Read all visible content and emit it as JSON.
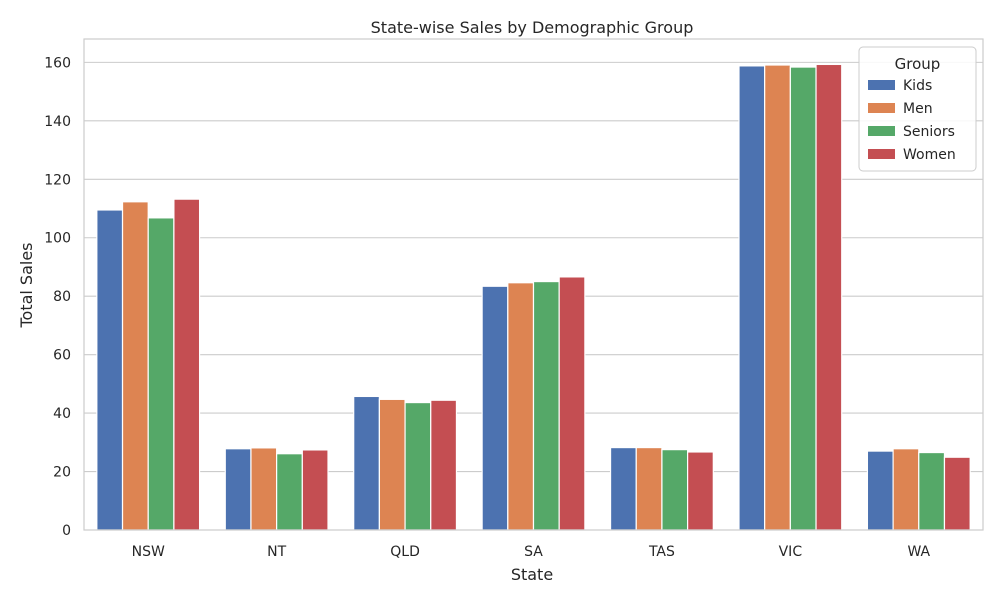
{
  "chart_data": {
    "type": "bar",
    "title": "State-wise Sales by Demographic Group",
    "xlabel": "State",
    "ylabel": "Total Sales",
    "categories": [
      "NSW",
      "NT",
      "QLD",
      "SA",
      "TAS",
      "VIC",
      "WA"
    ],
    "ylim": [
      0,
      168
    ],
    "yticks": [
      0,
      20,
      40,
      60,
      80,
      100,
      120,
      140,
      160
    ],
    "grid": true,
    "legend": {
      "title": "Group",
      "placement": "top-right"
    },
    "series": [
      {
        "name": " Kids",
        "color": "#4c72b0",
        "values": [
          109.5,
          27.8,
          45.7,
          83.4,
          28.2,
          158.8,
          27.0
        ]
      },
      {
        "name": " Men",
        "color": "#dd8452",
        "values": [
          112.3,
          28.1,
          44.7,
          84.6,
          28.2,
          159.1,
          27.8
        ]
      },
      {
        "name": " Seniors",
        "color": "#55a868",
        "values": [
          106.8,
          26.1,
          43.6,
          85.0,
          27.5,
          158.4,
          26.5
        ]
      },
      {
        "name": " Women",
        "color": "#c44e52",
        "values": [
          113.2,
          27.4,
          44.4,
          86.6,
          26.7,
          159.3,
          24.9
        ]
      }
    ]
  }
}
